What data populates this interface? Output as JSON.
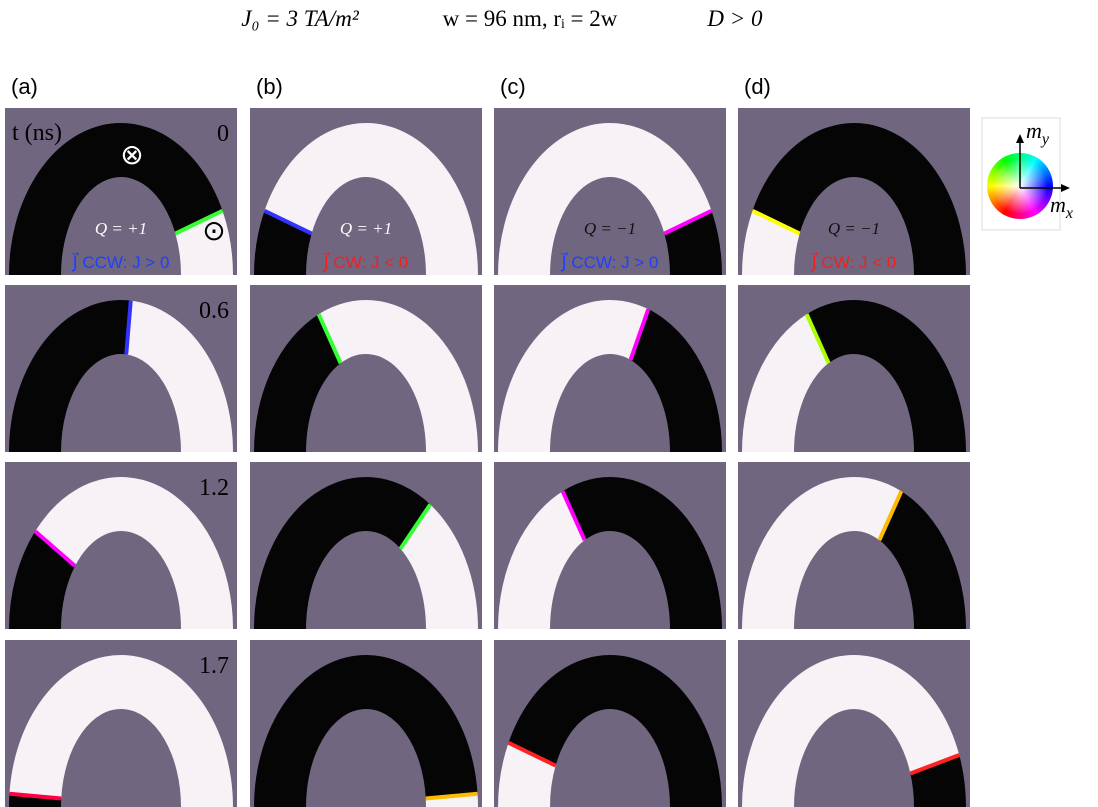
{
  "header": {
    "current": "J₀ = 3 TA/m²",
    "geometry": "w = 96 nm, rᵢ = 2w",
    "dmi": "D > 0"
  },
  "columns": [
    {
      "label": "(a)",
      "charge": "Q = +1",
      "current": "J⃗ CCW: J > 0"
    },
    {
      "label": "(b)",
      "charge": "Q = +1",
      "current": "J⃗ CW: J < 0"
    },
    {
      "label": "(c)",
      "charge": "Q = −1",
      "current": "J⃗ CCW: J > 0"
    },
    {
      "label": "(d)",
      "charge": "Q = −1",
      "current": "J⃗ CW: J < 0"
    }
  ],
  "time": {
    "axis_label": "t (ns)",
    "values": [
      "0",
      "0.6",
      "1.2",
      "1.7"
    ]
  },
  "symbols": {
    "into": "⊗",
    "out": "⊙"
  },
  "color_wheel": {
    "y_label": {
      "base": "m",
      "sub": "y"
    },
    "x_label": {
      "base": "m",
      "sub": "x"
    }
  }
}
